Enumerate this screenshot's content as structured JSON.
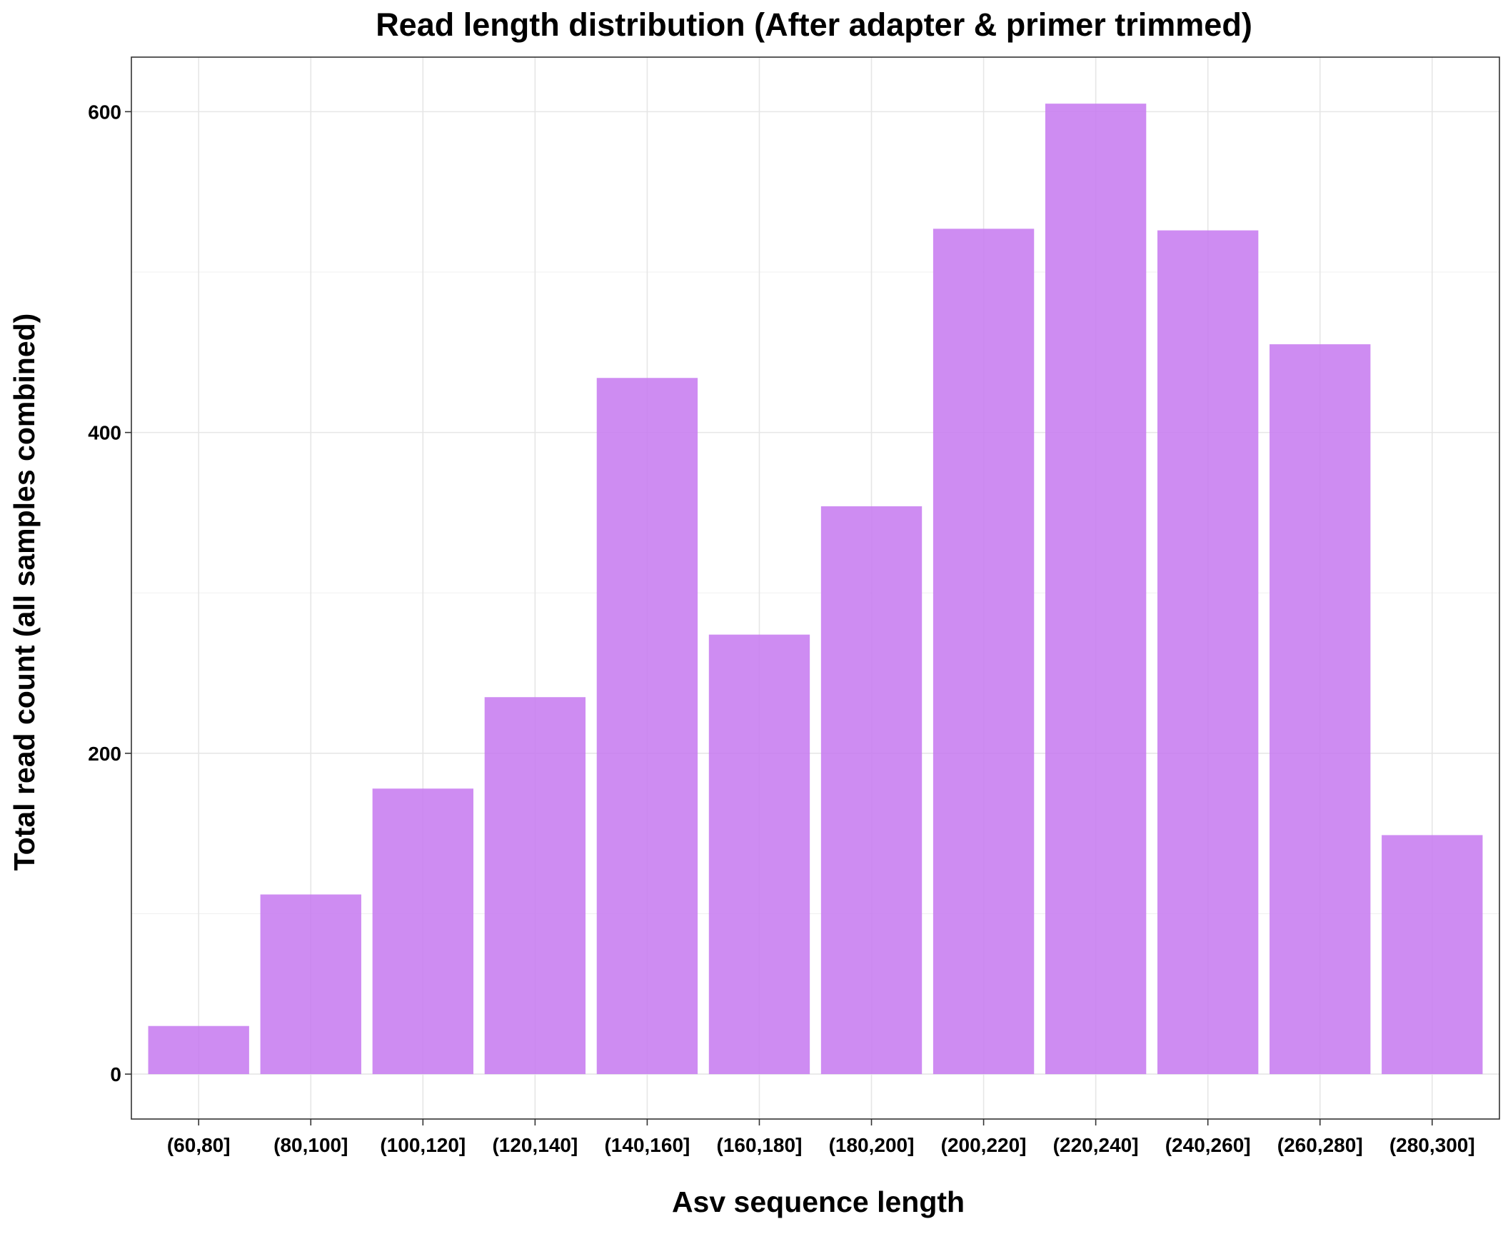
{
  "chart_data": {
    "type": "bar",
    "title": "Read length distribution (After adapter & primer trimmed)",
    "xlabel": "Asv sequence length",
    "ylabel": "Total read count (all samples combined)",
    "categories": [
      "(60,80]",
      "(80,100]",
      "(100,120]",
      "(120,140]",
      "(140,160]",
      "(160,180]",
      "(180,200]",
      "(200,220]",
      "(220,240]",
      "(240,260]",
      "(260,280]",
      "(280,300]"
    ],
    "values": [
      30,
      112,
      178,
      235,
      434,
      274,
      354,
      527,
      605,
      526,
      455,
      149
    ],
    "ylim": [
      -28,
      634
    ],
    "yticks": [
      0,
      200,
      400,
      600
    ],
    "grid": true,
    "legend": "none",
    "bar_color": "#c77cf0",
    "bar_opacity": 0.88
  }
}
